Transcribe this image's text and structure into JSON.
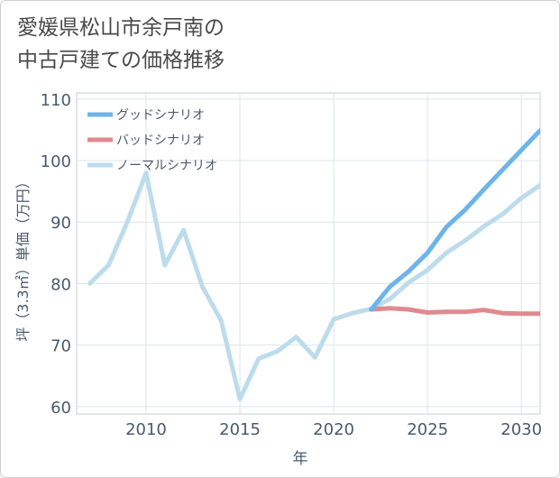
{
  "title_line1": "愛媛県松山市余戸南の",
  "title_line2": "中古戸建ての価格推移",
  "chart_data": {
    "type": "line",
    "title": "愛媛県松山市余戸南の中古戸建ての価格推移",
    "xlabel": "年",
    "ylabel": "坪（3.3㎡）単価（万円）",
    "xlim": [
      2006.3,
      2031
    ],
    "ylim": [
      58.8,
      111
    ],
    "xticks": [
      2010,
      2015,
      2020,
      2025,
      2030
    ],
    "yticks": [
      60,
      70,
      80,
      90,
      100,
      110
    ],
    "grid": true,
    "legend_position": "top-left",
    "series": [
      {
        "name": "グッドシナリオ",
        "color": "#6cb4ea",
        "x": [
          2022,
          2023,
          2024,
          2025,
          2026,
          2027,
          2028,
          2029,
          2030,
          2031
        ],
        "values": [
          75.8,
          79.5,
          82.0,
          85.0,
          89.2,
          92.0,
          95.3,
          98.5,
          101.7,
          104.9
        ]
      },
      {
        "name": "バッドシナリオ",
        "color": "#e08a8f",
        "x": [
          2022,
          2023,
          2024,
          2025,
          2026,
          2027,
          2028,
          2029,
          2030,
          2031
        ],
        "values": [
          75.8,
          76.0,
          75.8,
          75.3,
          75.4,
          75.4,
          75.7,
          75.2,
          75.1,
          75.1
        ]
      },
      {
        "name": "ノーマルシナリオ",
        "color": "#bcdcec",
        "x": [
          2007,
          2008,
          2009,
          2010,
          2011,
          2012,
          2013,
          2014,
          2015,
          2016,
          2017,
          2018,
          2019,
          2020,
          2021,
          2022,
          2023,
          2024,
          2025,
          2026,
          2027,
          2028,
          2029,
          2030,
          2031
        ],
        "values": [
          80.0,
          83.0,
          90.0,
          98.0,
          83.0,
          88.7,
          79.5,
          74.0,
          61.2,
          67.8,
          69.0,
          71.3,
          68.0,
          74.2,
          75.2,
          75.9,
          77.5,
          80.2,
          82.2,
          85.0,
          87.0,
          89.3,
          91.3,
          93.9,
          96.0
        ]
      }
    ]
  }
}
